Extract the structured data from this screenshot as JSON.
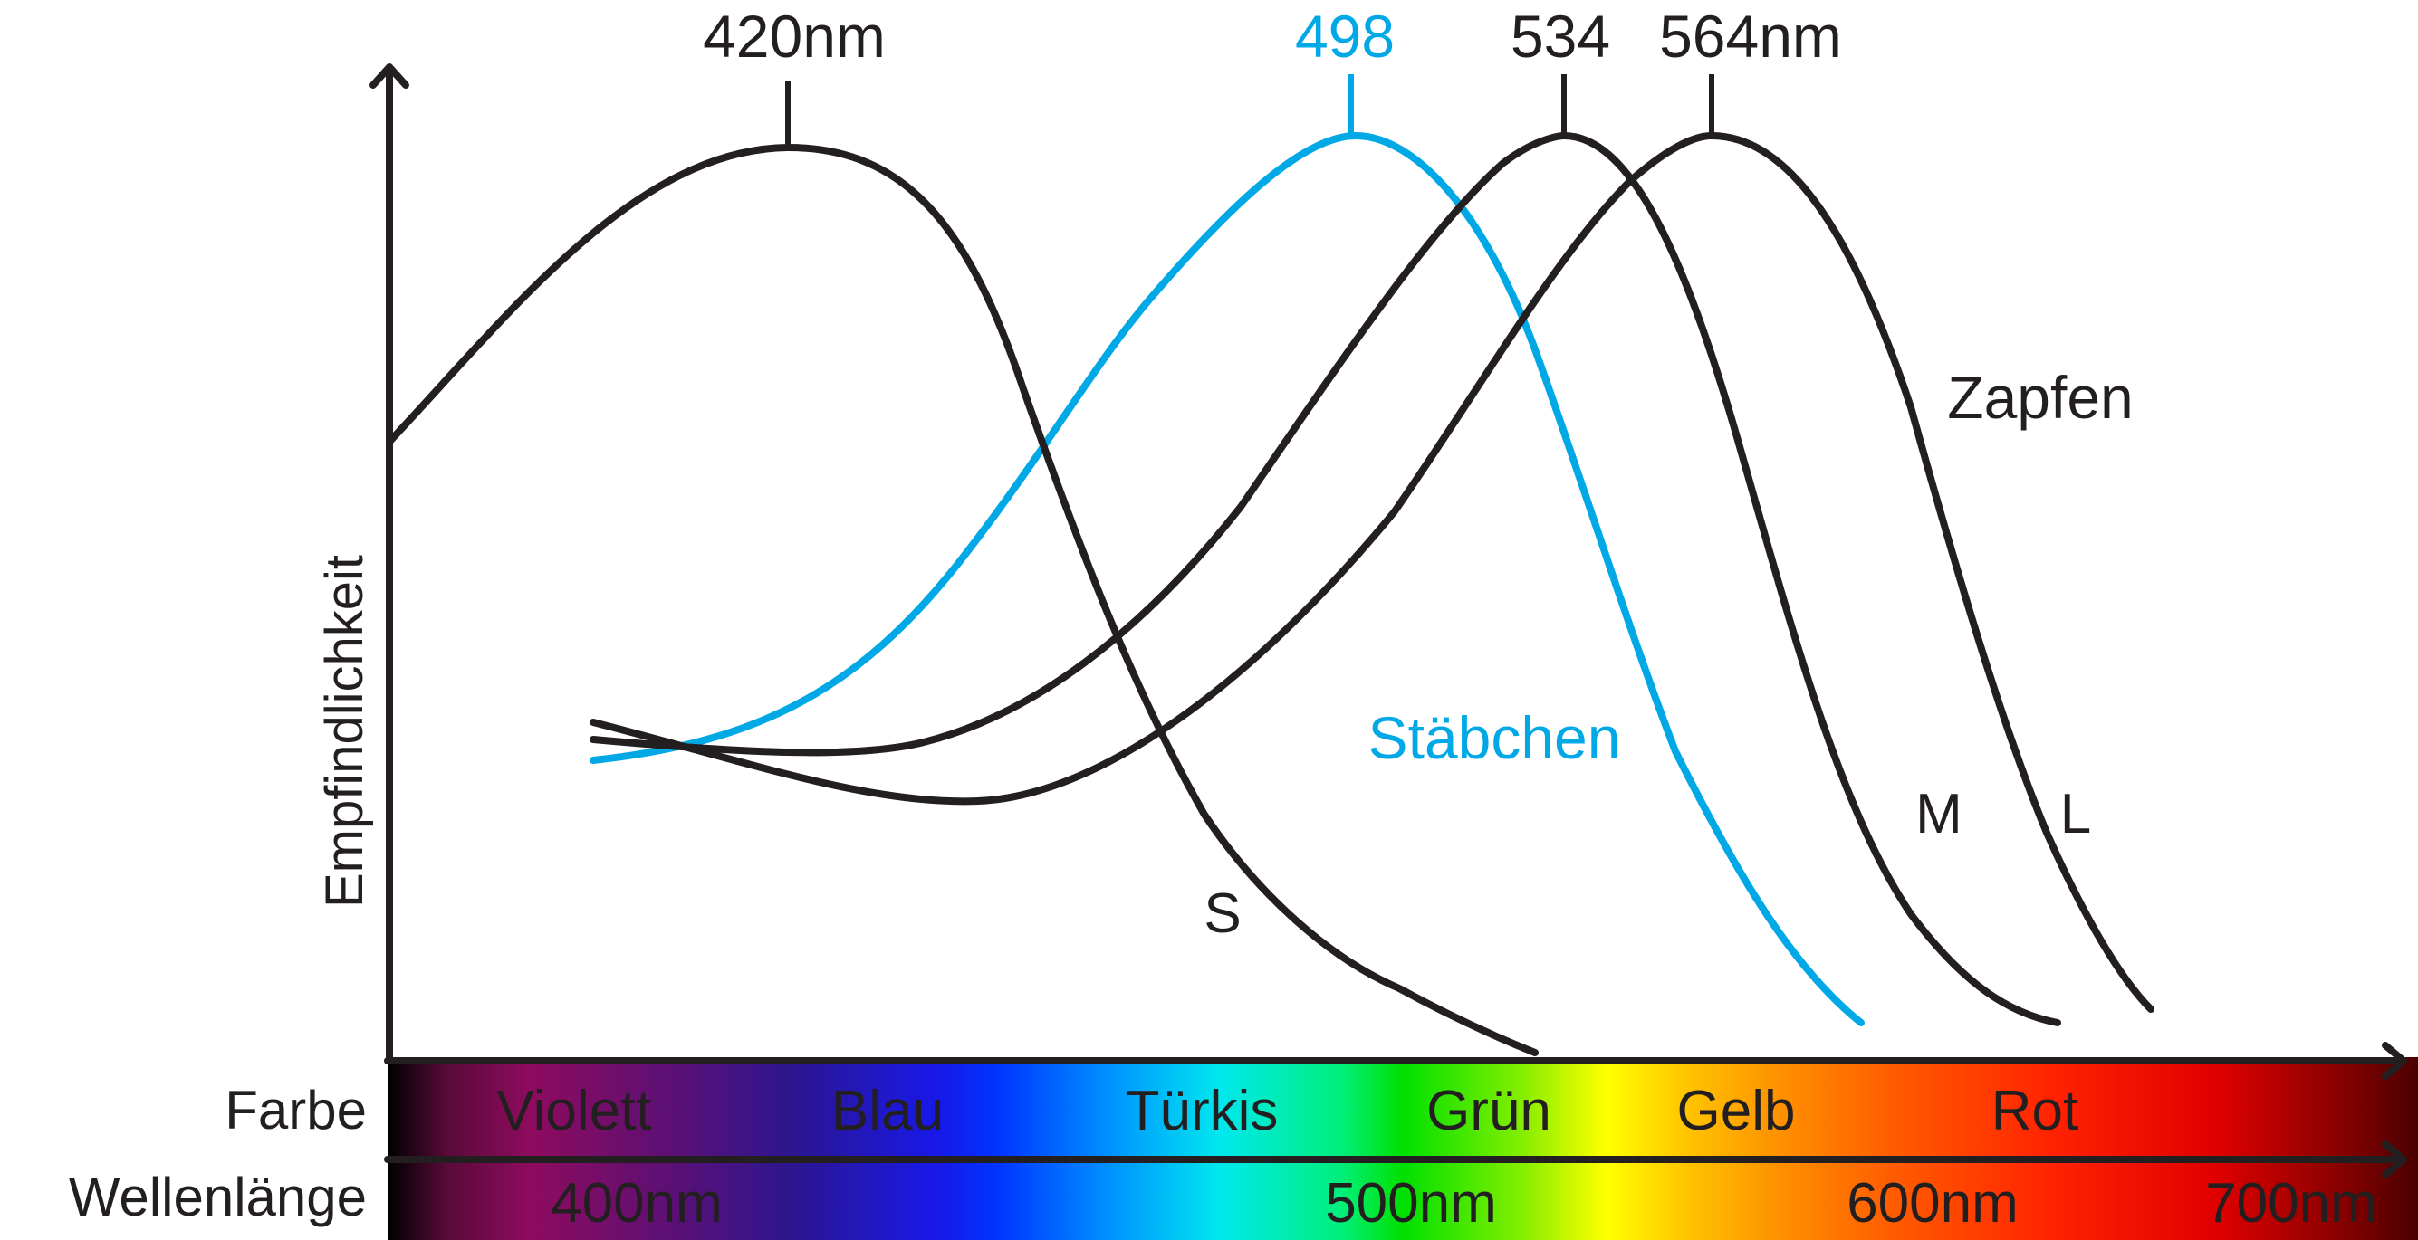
{
  "y_axis_label": "Empfindlichkeit",
  "peaks": [
    {
      "label": "420nm",
      "color": "#231f20"
    },
    {
      "label": "498",
      "color": "#00a9e6"
    },
    {
      "label": "534",
      "color": "#231f20"
    },
    {
      "label": "564nm",
      "color": "#231f20"
    }
  ],
  "curve_labels": {
    "s": "S",
    "m": "M",
    "l": "L",
    "rods": "Stäbchen",
    "cones": "Zapfen"
  },
  "colors": {
    "cone_curve": "#231f20",
    "rod_curve": "#00a9e6"
  },
  "color_row": {
    "title": "Farbe",
    "names": [
      "Violett",
      "Blau",
      "Türkis",
      "Grün",
      "Gelb",
      "Rot"
    ]
  },
  "wavelength_row": {
    "title": "Wellenlänge",
    "ticks": [
      "400nm",
      "500nm",
      "600nm",
      "700nm"
    ]
  }
}
